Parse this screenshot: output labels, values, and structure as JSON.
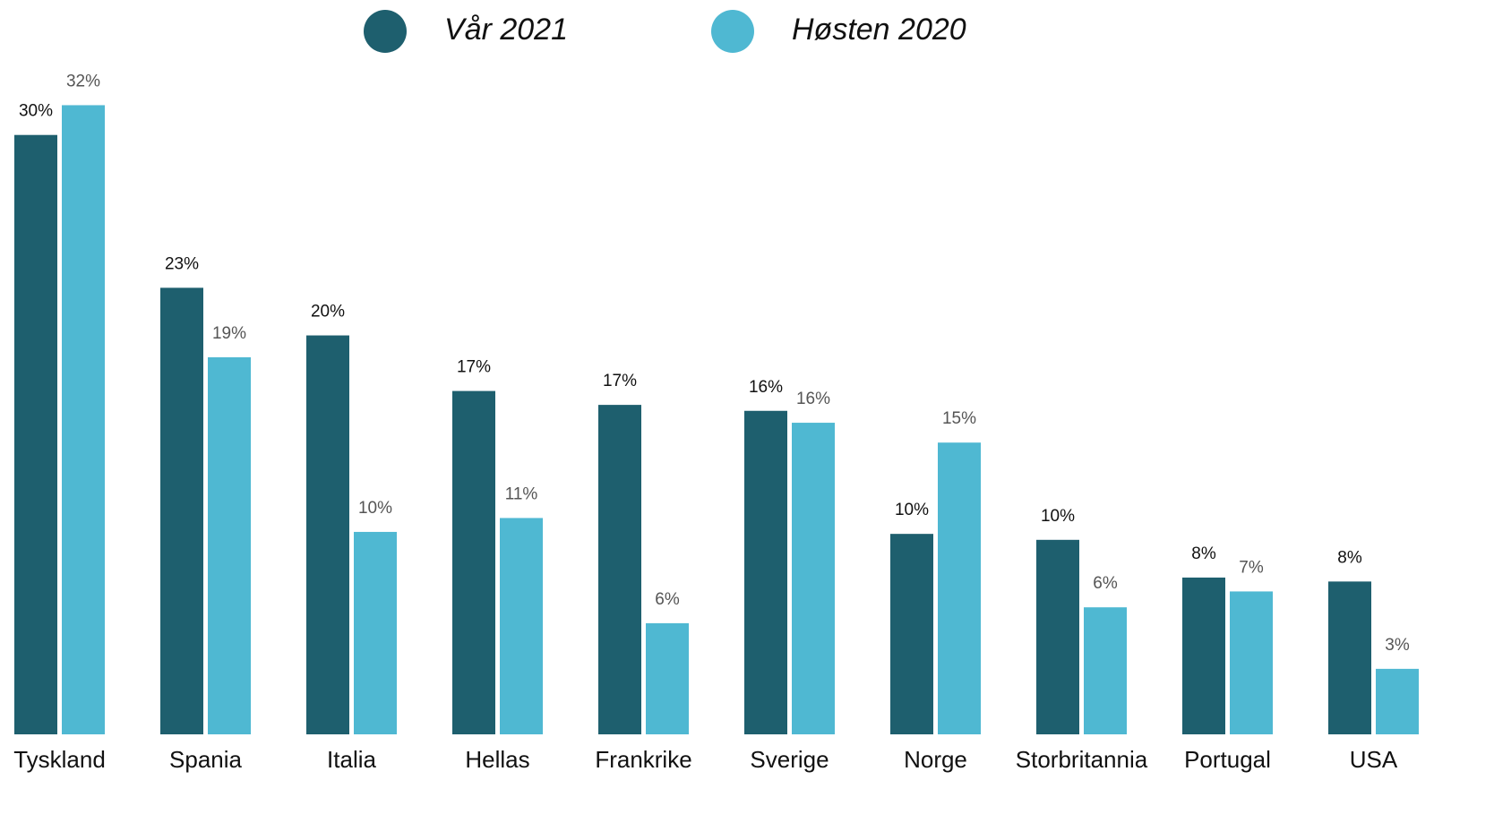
{
  "chart_data": {
    "type": "bar",
    "categories": [
      "Tyskland",
      "Spania",
      "Italia",
      "Hellas",
      "Frankrike",
      "Sverige",
      "Norge",
      "Storbritannia",
      "Portugal",
      "USA"
    ],
    "series": [
      {
        "name": "Vår 2021",
        "color": "#1e5f6e",
        "values": [
          30.2,
          22.5,
          20.1,
          17.3,
          16.6,
          16.3,
          10.1,
          9.8,
          7.9,
          7.7
        ],
        "value_labels": [
          "30%",
          "23%",
          "20%",
          "17%",
          "17%",
          "16%",
          "10%",
          "10%",
          "8%",
          "8%"
        ]
      },
      {
        "name": "Høsten 2020",
        "color": "#4fb8d2",
        "values": [
          31.7,
          19.0,
          10.2,
          10.9,
          5.6,
          15.7,
          14.7,
          6.4,
          7.2,
          3.3
        ],
        "value_labels": [
          "32%",
          "19%",
          "10%",
          "11%",
          "6%",
          "16%",
          "15%",
          "6%",
          "7%",
          "3%"
        ]
      }
    ],
    "ylim": [
      0,
      37
    ],
    "legend": "top"
  }
}
